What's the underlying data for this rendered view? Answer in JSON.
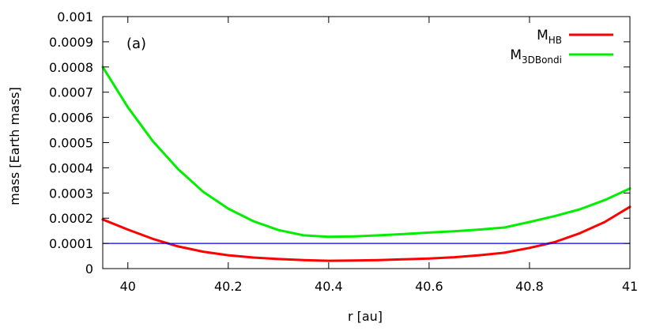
{
  "chart_data": {
    "type": "line",
    "title": "",
    "panel_label": "(a)",
    "xlabel": "r [au]",
    "ylabel": "mass [Earth mass]",
    "xlim": [
      39.95,
      41.0
    ],
    "ylim": [
      0,
      0.001
    ],
    "x_ticks": [
      40,
      40.2,
      40.4,
      40.6,
      40.8,
      41
    ],
    "x_tick_labels": [
      "40",
      "40.2",
      "40.4",
      "40.6",
      "40.8",
      "41"
    ],
    "y_ticks": [
      0,
      0.0001,
      0.0002,
      0.0003,
      0.0004,
      0.0005,
      0.0006,
      0.0007,
      0.0008,
      0.0009,
      0.001
    ],
    "y_tick_labels": [
      "0",
      "0.0001",
      "0.0002",
      "0.0003",
      "0.0004",
      "0.0005",
      "0.0006",
      "0.0007",
      "0.0008",
      "0.0009",
      "0.001"
    ],
    "grid": false,
    "legend_position": "top-right",
    "series": [
      {
        "name": "M_HB",
        "legend_main": "M",
        "legend_sub": "HB",
        "color": "#ff0000",
        "x": [
          39.95,
          40.0,
          40.05,
          40.1,
          40.15,
          40.2,
          40.25,
          40.3,
          40.35,
          40.4,
          40.45,
          40.5,
          40.55,
          40.6,
          40.65,
          40.7,
          40.75,
          40.8,
          40.85,
          40.9,
          40.95,
          41.0
        ],
        "y": [
          0.000195,
          0.000155,
          0.000118,
          8.8e-05,
          6.7e-05,
          5.3e-05,
          4.4e-05,
          3.8e-05,
          3.4e-05,
          3.1e-05,
          3.2e-05,
          3.4e-05,
          3.7e-05,
          4e-05,
          4.5e-05,
          5.3e-05,
          6.3e-05,
          8.2e-05,
          0.000105,
          0.00014,
          0.000185,
          0.000245
        ]
      },
      {
        "name": "M_3DBondi",
        "legend_main": "M",
        "legend_sub": "3DBondi",
        "color": "#00ee00",
        "x": [
          39.95,
          40.0,
          40.05,
          40.1,
          40.15,
          40.2,
          40.25,
          40.3,
          40.35,
          40.4,
          40.45,
          40.5,
          40.55,
          40.6,
          40.65,
          40.7,
          40.75,
          40.8,
          40.85,
          40.9,
          40.95,
          41.0
        ],
        "y": [
          0.0008,
          0.00064,
          0.000505,
          0.000395,
          0.000305,
          0.000238,
          0.000188,
          0.000153,
          0.000132,
          0.000126,
          0.000128,
          0.000132,
          0.000137,
          0.000143,
          0.000148,
          0.000155,
          0.000163,
          0.000185,
          0.000208,
          0.000235,
          0.000272,
          0.000318
        ]
      },
      {
        "name": "",
        "color": "#0000ff",
        "x": [
          39.95,
          41.0
        ],
        "y": [
          0.0001,
          0.0001
        ]
      }
    ]
  }
}
